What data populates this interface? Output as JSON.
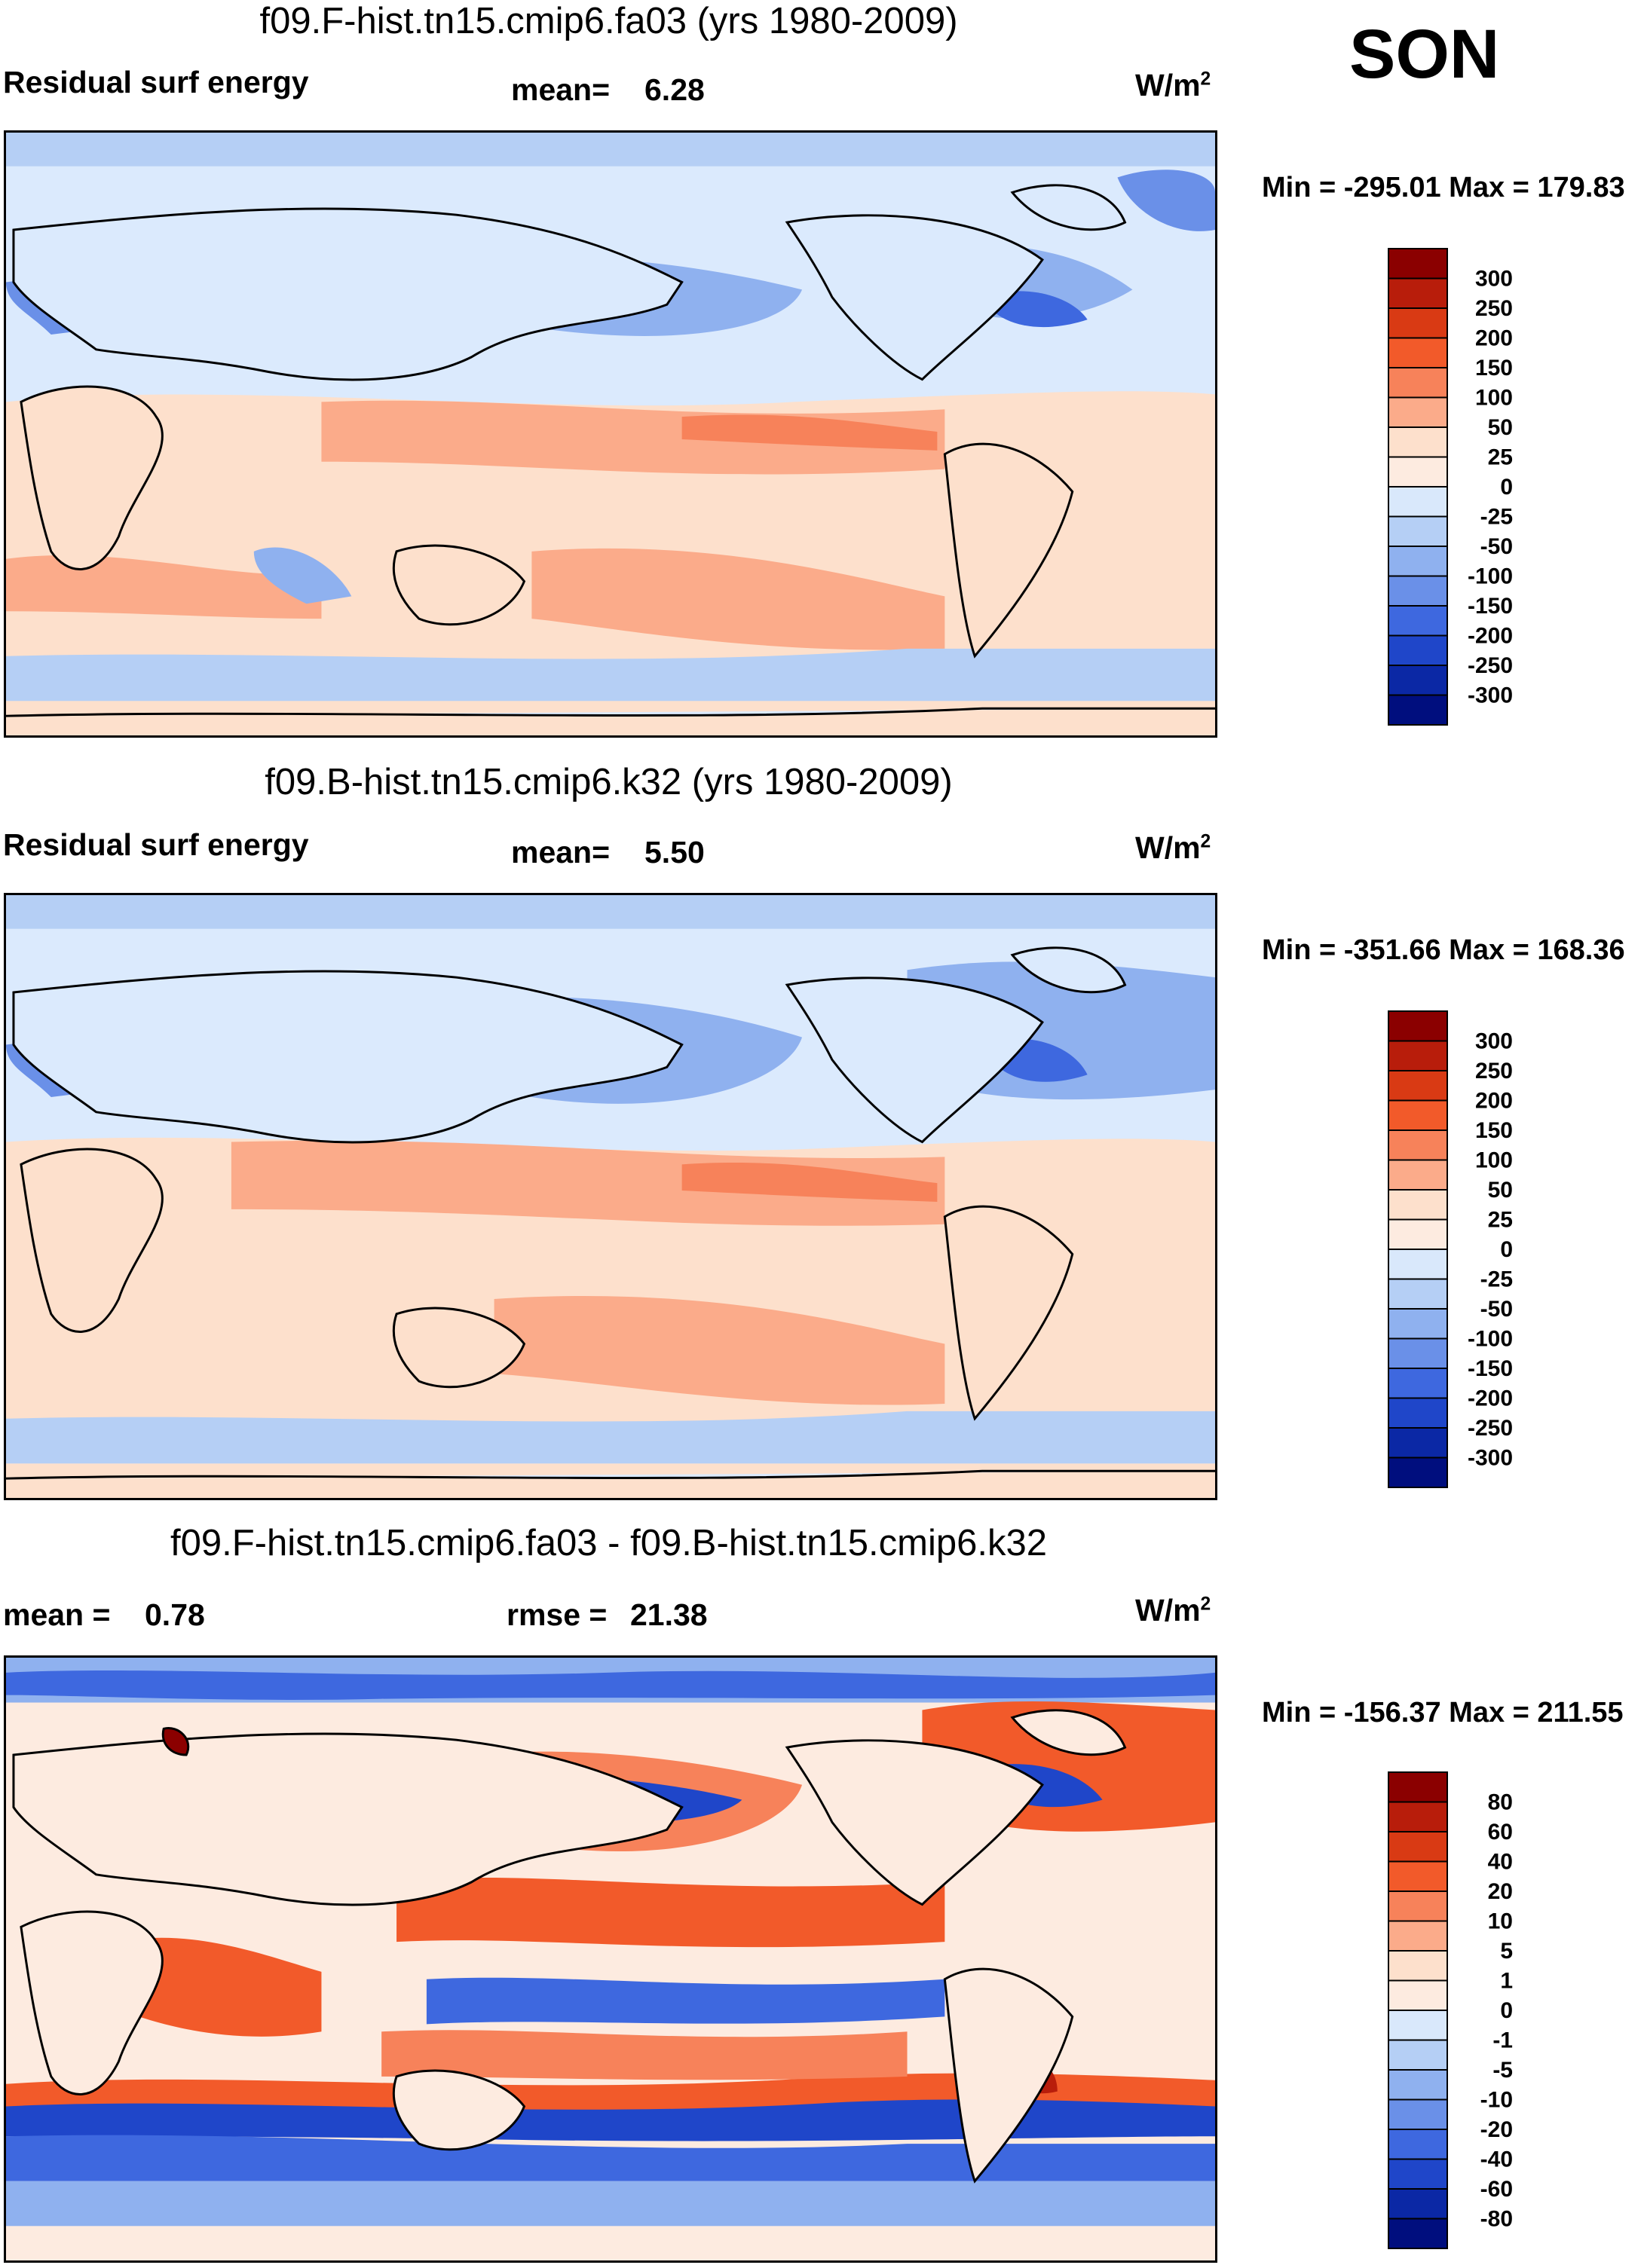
{
  "season": "SON",
  "panels": [
    {
      "title": "f09.F-hist.tn15.cmip6.fa03 (yrs 1980-2009)",
      "left_label": "Residual surf energy",
      "mean_label": "mean=",
      "mean_value": "6.28",
      "units": "W/m",
      "units_sup": "2",
      "min_max": "Min = -295.01 Max = 179.83",
      "colorbar_ticks": [
        "300",
        "250",
        "200",
        "150",
        "100",
        "50",
        "25",
        "0",
        "-25",
        "-50",
        "-100",
        "-150",
        "-200",
        "-250",
        "-300"
      ]
    },
    {
      "title": "f09.B-hist.tn15.cmip6.k32 (yrs 1980-2009)",
      "left_label": "Residual surf energy",
      "mean_label": "mean=",
      "mean_value": "5.50",
      "units": "W/m",
      "units_sup": "2",
      "min_max": "Min = -351.66 Max = 168.36",
      "colorbar_ticks": [
        "300",
        "250",
        "200",
        "150",
        "100",
        "50",
        "25",
        "0",
        "-25",
        "-50",
        "-100",
        "-150",
        "-200",
        "-250",
        "-300"
      ]
    },
    {
      "title": "f09.F-hist.tn15.cmip6.fa03 - f09.B-hist.tn15.cmip6.k32",
      "left_label": "mean =",
      "left_value": "0.78",
      "rmse_label": "rmse =",
      "rmse_value": "21.38",
      "units": "W/m",
      "units_sup": "2",
      "min_max": "Min = -156.37 Max = 211.55",
      "colorbar_ticks": [
        "80",
        "60",
        "40",
        "20",
        "10",
        "5",
        "1",
        "0",
        "-1",
        "-5",
        "-10",
        "-20",
        "-40",
        "-60",
        "-80"
      ]
    }
  ],
  "colors": {
    "scale": [
      "#8b0000",
      "#b81d0b",
      "#d93a14",
      "#f25a2a",
      "#f7825a",
      "#fbab8a",
      "#fde0cc",
      "#fdebe0",
      "#d9e8fb",
      "#b5cff5",
      "#8fb1ef",
      "#6a90e8",
      "#3e68df",
      "#1f46c9",
      "#0b28a5",
      "#000e7e"
    ],
    "land_fill": "#dbeafd",
    "coast": "#000000"
  }
}
